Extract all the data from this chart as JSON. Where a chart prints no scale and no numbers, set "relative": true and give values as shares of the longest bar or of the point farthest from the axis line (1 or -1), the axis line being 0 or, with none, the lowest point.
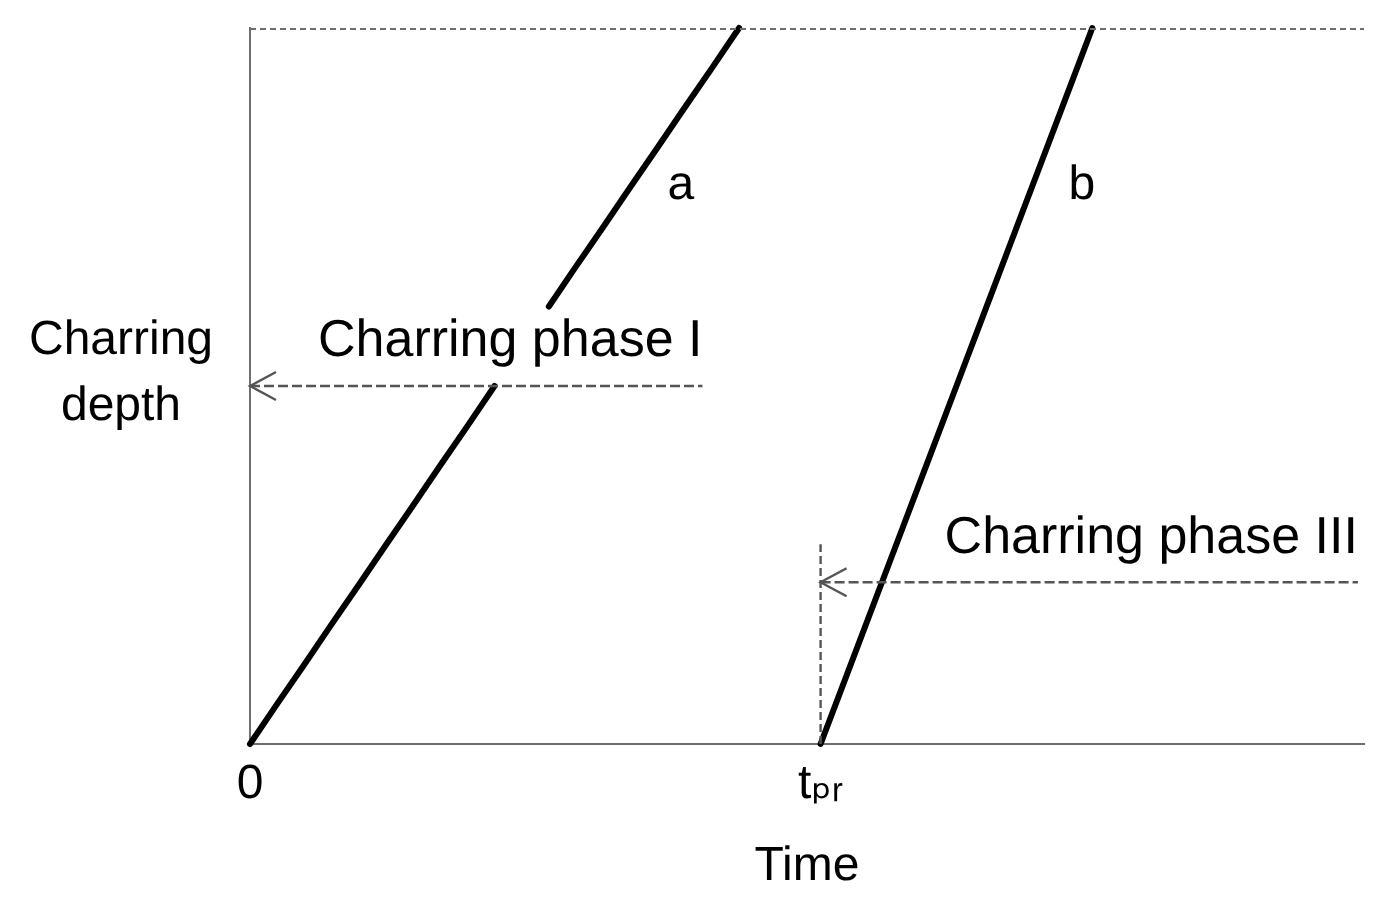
{
  "chart_data": {
    "type": "line",
    "xlabel": "Time",
    "ylabel": "Charring depth",
    "relative": true,
    "categories": [
      "0",
      null,
      null,
      null,
      null,
      null,
      null,
      null,
      null,
      null,
      null,
      null,
      null,
      null,
      null,
      null,
      null,
      null,
      null,
      null,
      null,
      "tₚᵣ",
      null,
      null,
      null,
      null,
      null,
      null,
      null,
      null,
      null,
      null,
      null,
      null,
      null,
      null,
      null,
      null,
      null,
      null,
      null,
      null
    ],
    "series": [
      {
        "name": "a",
        "color": "#000000",
        "values": [
          0,
          0.056,
          0.111,
          0.167,
          0.222,
          0.278,
          0.333,
          0.389,
          0.444,
          0.5,
          null,
          0.611,
          0.667,
          0.722,
          0.778,
          0.833,
          0.889,
          0.944,
          1,
          null,
          null,
          null,
          null,
          null,
          null,
          null,
          null,
          null,
          null,
          null,
          null,
          null,
          null,
          null,
          null,
          null,
          null,
          null,
          null,
          null,
          null,
          null
        ]
      },
      {
        "name": "b",
        "color": "#000000",
        "values": [
          null,
          null,
          null,
          null,
          null,
          null,
          null,
          null,
          null,
          null,
          null,
          null,
          null,
          null,
          null,
          null,
          null,
          null,
          null,
          null,
          null,
          0,
          0.1,
          0.2,
          0.3,
          0.4,
          0.5,
          0.6,
          0.7,
          0.8,
          0.9,
          1,
          null,
          null,
          null,
          null,
          null,
          null,
          null,
          null,
          null,
          null
        ]
      }
    ],
    "annotations": [
      "Charring phase I",
      "Charring phase III"
    ]
  }
}
